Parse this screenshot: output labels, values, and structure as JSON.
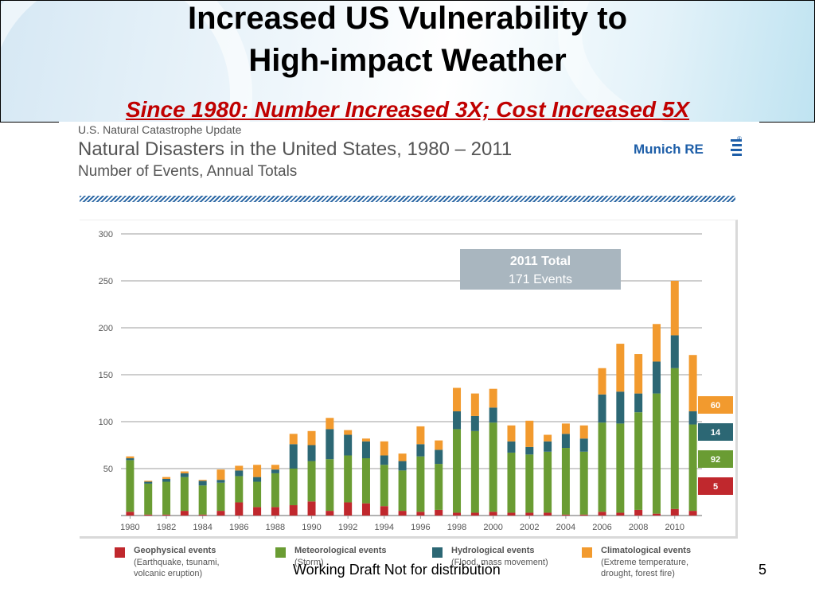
{
  "slide": {
    "title_line1": "Increased US Vulnerability to",
    "title_line2": "High-impact Weather",
    "subtitle": "Since 1980:  Number Increased 3X;  Cost Increased 5X",
    "footer": "Working Draft Not for distribution",
    "page_number": "5"
  },
  "figure": {
    "supertitle": "U.S. Natural Catastrophe Update",
    "title": "Natural Disasters in the United States, 1980 – 2011",
    "subtitle": "Number of Events, Annual Totals",
    "logo_text": "Munich RE",
    "logo_mark": "®",
    "callout_title": "2011 Total",
    "callout_value": "171 Events"
  },
  "legend": [
    {
      "title": "Geophysical events",
      "desc": "(Earthquake, tsunami, volcanic eruption)",
      "color": "#c0282d"
    },
    {
      "title": "Meteorological events",
      "desc": "(Storm)",
      "color": "#6a9c33"
    },
    {
      "title": "Hydrological events",
      "desc": "(Flood, mass movement)",
      "color": "#2c6774"
    },
    {
      "title": "Climatological events",
      "desc": "(Extreme temperature, drought, forest fire)",
      "color": "#f29a2e"
    }
  ],
  "chart_data": {
    "type": "bar",
    "stacked": true,
    "title": "Natural Disasters in the United States, 1980 – 2011",
    "subtitle": "Number of Events, Annual Totals",
    "ylim": [
      0,
      300
    ],
    "yticks": [
      50,
      100,
      150,
      200,
      250,
      300
    ],
    "xtick_labels": [
      "1980",
      "1982",
      "1984",
      "1986",
      "1988",
      "1990",
      "1992",
      "1994",
      "1996",
      "1998",
      "2000",
      "2002",
      "2004",
      "2006",
      "2008",
      "2010"
    ],
    "categories": [
      "1980",
      "1981",
      "1982",
      "1983",
      "1984",
      "1985",
      "1986",
      "1987",
      "1988",
      "1989",
      "1990",
      "1991",
      "1992",
      "1993",
      "1994",
      "1995",
      "1996",
      "1997",
      "1998",
      "1999",
      "2000",
      "2001",
      "2002",
      "2003",
      "2004",
      "2005",
      "2006",
      "2007",
      "2008",
      "2009",
      "2010",
      "2011"
    ],
    "grid": true,
    "series": [
      {
        "name": "Geophysical events",
        "color": "#c0282d",
        "values": [
          4,
          1,
          1,
          5,
          1,
          5,
          14,
          9,
          9,
          11,
          15,
          5,
          14,
          13,
          10,
          5,
          4,
          6,
          3,
          3,
          4,
          3,
          3,
          3,
          1,
          1,
          4,
          3,
          6,
          2,
          7,
          5
        ]
      },
      {
        "name": "Meteorological events",
        "color": "#6a9c33",
        "values": [
          55,
          33,
          35,
          36,
          31,
          30,
          28,
          27,
          36,
          39,
          43,
          55,
          50,
          48,
          44,
          43,
          59,
          49,
          89,
          87,
          95,
          64,
          62,
          65,
          71,
          67,
          95,
          95,
          104,
          128,
          150,
          92
        ]
      },
      {
        "name": "Hydrological events",
        "color": "#2c6774",
        "values": [
          2,
          2,
          3,
          4,
          5,
          3,
          6,
          5,
          4,
          26,
          17,
          32,
          22,
          18,
          10,
          10,
          13,
          15,
          19,
          16,
          16,
          12,
          8,
          11,
          15,
          14,
          30,
          34,
          20,
          34,
          35,
          14
        ]
      },
      {
        "name": "Climatological events",
        "color": "#f29a2e",
        "values": [
          2,
          1,
          2,
          2,
          1,
          11,
          5,
          13,
          5,
          11,
          15,
          12,
          5,
          3,
          15,
          8,
          19,
          10,
          25,
          24,
          20,
          17,
          28,
          7,
          11,
          14,
          28,
          51,
          42,
          40,
          58,
          60
        ]
      }
    ],
    "last_bar_labels": [
      "60",
      "14",
      "92",
      "5"
    ],
    "annotation": "2011 Total 171 Events"
  }
}
